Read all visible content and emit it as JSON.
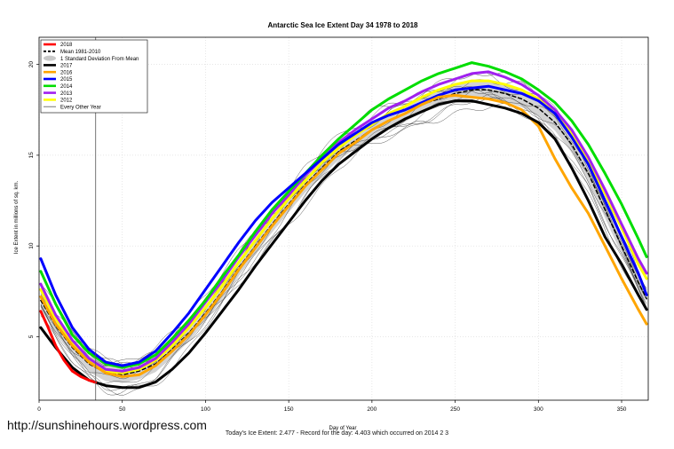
{
  "chart_data": {
    "type": "line",
    "title": "Antarctic Sea Ice Extent Day 34 1978 to 2018",
    "xlabel": "Day of Year",
    "ylabel": "Ice Extent in millions of sq. km.",
    "xlim": [
      0,
      366
    ],
    "ylim": [
      1.5,
      21.5
    ],
    "xticks": [
      0,
      50,
      100,
      150,
      200,
      250,
      300,
      350
    ],
    "yticks": [
      5,
      10,
      15,
      20
    ],
    "grid": true,
    "legend_position": "top-left",
    "marker_day": 34,
    "legend": [
      {
        "label": "2018",
        "color": "#ff0000",
        "style": "thick"
      },
      {
        "label": "Mean 1981-2010",
        "color": "#000000",
        "style": "dashed"
      },
      {
        "label": "1 Standard Deviation From Mean",
        "color": "#c8c8c8",
        "style": "band"
      },
      {
        "label": "2017",
        "color": "#000000",
        "style": "thick"
      },
      {
        "label": "2016",
        "color": "#ffa500",
        "style": "thick"
      },
      {
        "label": "2015",
        "color": "#0000ff",
        "style": "thick"
      },
      {
        "label": "2014",
        "color": "#00dd00",
        "style": "thick"
      },
      {
        "label": "2013",
        "color": "#a020f0",
        "style": "thick"
      },
      {
        "label": "2012",
        "color": "#ffff00",
        "style": "thick"
      },
      {
        "label": "Every Other Year",
        "color": "#555555",
        "style": "thin"
      }
    ],
    "series": [
      {
        "name": "2018",
        "color": "#ff0000",
        "width": 3,
        "x": [
          1,
          5,
          10,
          15,
          20,
          25,
          30,
          34
        ],
        "y": [
          6.4,
          5.6,
          4.5,
          3.7,
          3.1,
          2.8,
          2.6,
          2.48
        ]
      },
      {
        "name": "Mean 1981-2010",
        "color": "#000000",
        "width": 1.5,
        "dash": "4,3",
        "x": [
          1,
          10,
          20,
          30,
          40,
          50,
          60,
          70,
          80,
          90,
          100,
          110,
          120,
          130,
          140,
          150,
          160,
          170,
          180,
          190,
          200,
          210,
          220,
          230,
          240,
          250,
          260,
          270,
          280,
          290,
          300,
          310,
          320,
          330,
          340,
          350,
          360,
          365
        ],
        "y": [
          7.0,
          5.6,
          4.4,
          3.5,
          3.0,
          2.9,
          3.1,
          3.5,
          4.3,
          5.2,
          6.3,
          7.5,
          8.8,
          10.0,
          11.2,
          12.3,
          13.4,
          14.3,
          15.2,
          15.8,
          16.4,
          16.9,
          17.3,
          17.8,
          18.1,
          18.4,
          18.6,
          18.6,
          18.4,
          18.1,
          17.6,
          16.8,
          15.6,
          14.0,
          12.0,
          10.0,
          8.0,
          7.1
        ]
      },
      {
        "name": "2017",
        "color": "#000000",
        "width": 3,
        "x": [
          1,
          10,
          20,
          30,
          40,
          50,
          60,
          70,
          80,
          90,
          100,
          110,
          120,
          130,
          140,
          150,
          160,
          170,
          180,
          190,
          200,
          210,
          220,
          230,
          240,
          250,
          260,
          270,
          280,
          290,
          300,
          310,
          320,
          330,
          340,
          350,
          360,
          365
        ],
        "y": [
          5.5,
          4.4,
          3.3,
          2.6,
          2.3,
          2.2,
          2.2,
          2.5,
          3.2,
          4.1,
          5.2,
          6.4,
          7.6,
          8.9,
          10.1,
          11.3,
          12.5,
          13.6,
          14.5,
          15.2,
          15.9,
          16.5,
          17.0,
          17.4,
          17.8,
          18.0,
          18.0,
          17.8,
          17.6,
          17.3,
          16.8,
          15.9,
          14.3,
          12.5,
          10.5,
          9.0,
          7.3,
          6.5
        ]
      },
      {
        "name": "2016",
        "color": "#ffa500",
        "width": 3,
        "x": [
          1,
          10,
          20,
          30,
          40,
          50,
          60,
          70,
          80,
          90,
          100,
          110,
          120,
          130,
          140,
          150,
          160,
          170,
          180,
          190,
          200,
          210,
          220,
          230,
          240,
          250,
          260,
          270,
          280,
          290,
          300,
          310,
          320,
          330,
          340,
          350,
          360,
          365
        ],
        "y": [
          7.2,
          5.7,
          4.5,
          3.6,
          3.0,
          2.8,
          2.9,
          3.4,
          4.2,
          5.1,
          6.2,
          7.4,
          8.7,
          9.9,
          11.1,
          12.2,
          13.3,
          14.2,
          15.1,
          15.7,
          16.4,
          16.9,
          17.3,
          17.8,
          18.2,
          18.3,
          18.2,
          18.1,
          17.9,
          17.5,
          16.6,
          14.8,
          13.2,
          11.8,
          10.0,
          8.2,
          6.5,
          5.7
        ]
      },
      {
        "name": "2015",
        "color": "#0000ff",
        "width": 3,
        "x": [
          1,
          10,
          20,
          30,
          40,
          50,
          60,
          70,
          80,
          90,
          100,
          110,
          120,
          130,
          140,
          150,
          160,
          170,
          180,
          190,
          200,
          210,
          220,
          230,
          240,
          250,
          260,
          270,
          280,
          290,
          300,
          310,
          320,
          330,
          340,
          350,
          360,
          365
        ],
        "y": [
          9.3,
          7.3,
          5.5,
          4.3,
          3.6,
          3.4,
          3.6,
          4.2,
          5.2,
          6.3,
          7.6,
          8.9,
          10.2,
          11.4,
          12.4,
          13.2,
          14.0,
          14.8,
          15.6,
          16.2,
          16.8,
          17.2,
          17.5,
          17.9,
          18.3,
          18.6,
          18.7,
          18.8,
          18.6,
          18.4,
          18.0,
          17.3,
          16.0,
          14.5,
          12.5,
          10.5,
          8.5,
          7.3
        ]
      },
      {
        "name": "2014",
        "color": "#00dd00",
        "width": 3,
        "x": [
          1,
          10,
          20,
          30,
          40,
          50,
          60,
          70,
          80,
          90,
          100,
          110,
          120,
          130,
          140,
          150,
          160,
          170,
          180,
          190,
          200,
          210,
          220,
          230,
          240,
          250,
          260,
          270,
          280,
          290,
          300,
          310,
          320,
          330,
          340,
          350,
          360,
          365
        ],
        "y": [
          8.6,
          6.8,
          5.1,
          4.1,
          3.5,
          3.3,
          3.5,
          4.0,
          4.9,
          5.9,
          7.0,
          8.3,
          9.5,
          10.8,
          12.0,
          13.0,
          14.0,
          15.0,
          15.9,
          16.7,
          17.5,
          18.1,
          18.6,
          19.1,
          19.5,
          19.8,
          20.1,
          19.9,
          19.6,
          19.2,
          18.6,
          17.9,
          16.9,
          15.6,
          14.0,
          12.3,
          10.4,
          9.4
        ]
      },
      {
        "name": "2013",
        "color": "#a020f0",
        "width": 3,
        "x": [
          1,
          10,
          20,
          30,
          40,
          50,
          60,
          70,
          80,
          90,
          100,
          110,
          120,
          130,
          140,
          150,
          160,
          170,
          180,
          190,
          200,
          210,
          220,
          230,
          240,
          250,
          260,
          270,
          280,
          290,
          300,
          310,
          320,
          330,
          340,
          350,
          360,
          365
        ],
        "y": [
          7.9,
          6.2,
          4.8,
          3.8,
          3.2,
          3.1,
          3.3,
          3.8,
          4.7,
          5.7,
          6.9,
          8.1,
          9.4,
          10.6,
          11.8,
          12.8,
          13.9,
          14.8,
          15.7,
          16.4,
          17.0,
          17.6,
          18.0,
          18.5,
          18.9,
          19.2,
          19.5,
          19.6,
          19.3,
          18.9,
          18.3,
          17.5,
          16.4,
          14.9,
          13.1,
          11.2,
          9.3,
          8.5
        ]
      },
      {
        "name": "2012",
        "color": "#ffff00",
        "width": 3,
        "x": [
          1,
          10,
          20,
          30,
          40,
          50,
          60,
          70,
          80,
          90,
          100,
          110,
          120,
          130,
          140,
          150,
          160,
          170,
          180,
          190,
          200,
          210,
          220,
          230,
          240,
          250,
          260,
          270,
          280,
          290,
          300,
          310,
          320,
          330,
          340,
          350,
          360,
          365
        ],
        "y": [
          7.6,
          6.0,
          4.7,
          3.7,
          3.1,
          3.0,
          3.2,
          3.7,
          4.5,
          5.5,
          6.6,
          7.8,
          9.1,
          10.3,
          11.5,
          12.6,
          13.6,
          14.6,
          15.4,
          16.1,
          16.7,
          17.3,
          17.7,
          18.2,
          18.6,
          18.9,
          19.1,
          19.1,
          18.9,
          18.6,
          18.1,
          17.3,
          16.2,
          14.7,
          12.9,
          11.0,
          9.0,
          8.2
        ]
      }
    ]
  },
  "watermark": "http://sunshinehours.wordpress.com",
  "footnote": "Today's Ice Extent: 2.477  - Record for the day: 4.403 which occurred on 2014 2 3"
}
